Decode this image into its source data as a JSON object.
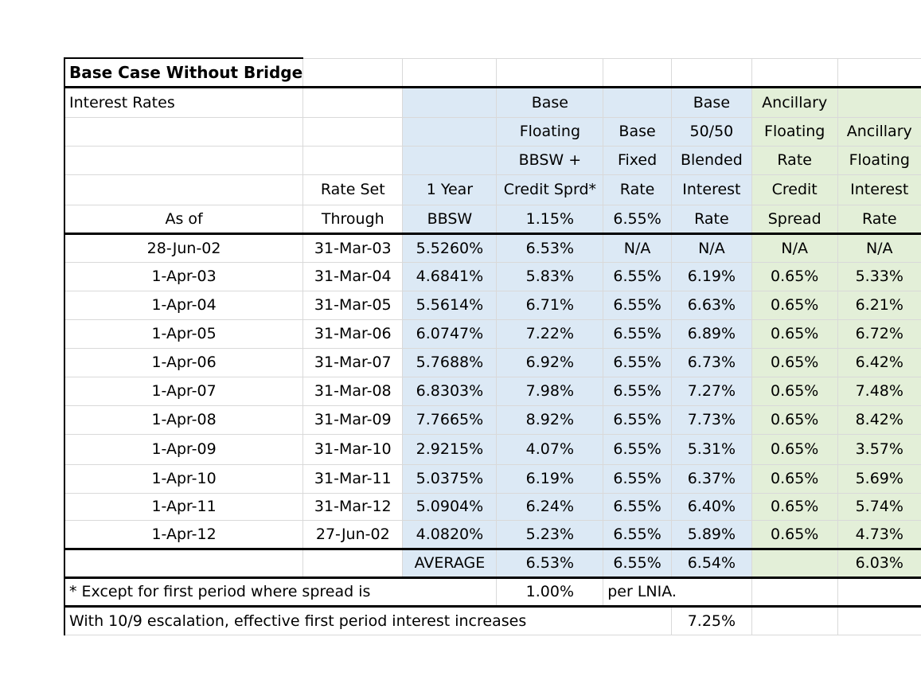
{
  "title": "Base Case Without Bridge",
  "section_label": "Interest Rates",
  "headers": {
    "as_of": "As of",
    "rate_set_1": "Rate Set",
    "rate_set_2": "Through",
    "bbsw_1": "1 Year",
    "bbsw_2": "BBSW",
    "floating_1": "Base",
    "floating_2": "Floating",
    "floating_3": "BBSW +",
    "floating_4": "Credit Sprd*",
    "floating_5": "1.15%",
    "fixed_1": "Base",
    "fixed_2": "Fixed",
    "fixed_3": "Rate",
    "fixed_4": "6.55%",
    "blended_1": "Base",
    "blended_2": "50/50",
    "blended_3": "Blended",
    "blended_4": "Interest",
    "blended_5": "Rate",
    "anc_spread_1": "Ancillary",
    "anc_spread_2": "Floating",
    "anc_spread_3": "Rate",
    "anc_spread_4": "Credit",
    "anc_spread_5": "Spread",
    "anc_rate_1": "Ancillary",
    "anc_rate_2": "Floating",
    "anc_rate_3": "Interest",
    "anc_rate_4": "Rate"
  },
  "rows": [
    {
      "as_of": "28-Jun-02",
      "through": "31-Mar-03",
      "bbsw": "5.5260%",
      "floating": "6.53%",
      "fixed": "N/A",
      "blended": "N/A",
      "anc_spread": "N/A",
      "anc_rate": "N/A"
    },
    {
      "as_of": "1-Apr-03",
      "through": "31-Mar-04",
      "bbsw": "4.6841%",
      "floating": "5.83%",
      "fixed": "6.55%",
      "blended": "6.19%",
      "anc_spread": "0.65%",
      "anc_rate": "5.33%"
    },
    {
      "as_of": "1-Apr-04",
      "through": "31-Mar-05",
      "bbsw": "5.5614%",
      "floating": "6.71%",
      "fixed": "6.55%",
      "blended": "6.63%",
      "anc_spread": "0.65%",
      "anc_rate": "6.21%"
    },
    {
      "as_of": "1-Apr-05",
      "through": "31-Mar-06",
      "bbsw": "6.0747%",
      "floating": "7.22%",
      "fixed": "6.55%",
      "blended": "6.89%",
      "anc_spread": "0.65%",
      "anc_rate": "6.72%"
    },
    {
      "as_of": "1-Apr-06",
      "through": "31-Mar-07",
      "bbsw": "5.7688%",
      "floating": "6.92%",
      "fixed": "6.55%",
      "blended": "6.73%",
      "anc_spread": "0.65%",
      "anc_rate": "6.42%"
    },
    {
      "as_of": "1-Apr-07",
      "through": "31-Mar-08",
      "bbsw": "6.8303%",
      "floating": "7.98%",
      "fixed": "6.55%",
      "blended": "7.27%",
      "anc_spread": "0.65%",
      "anc_rate": "7.48%"
    },
    {
      "as_of": "1-Apr-08",
      "through": "31-Mar-09",
      "bbsw": "7.7665%",
      "floating": "8.92%",
      "fixed": "6.55%",
      "blended": "7.73%",
      "anc_spread": "0.65%",
      "anc_rate": "8.42%"
    },
    {
      "as_of": "1-Apr-09",
      "through": "31-Mar-10",
      "bbsw": "2.9215%",
      "floating": "4.07%",
      "fixed": "6.55%",
      "blended": "5.31%",
      "anc_spread": "0.65%",
      "anc_rate": "3.57%"
    },
    {
      "as_of": "1-Apr-10",
      "through": "31-Mar-11",
      "bbsw": "5.0375%",
      "floating": "6.19%",
      "fixed": "6.55%",
      "blended": "6.37%",
      "anc_spread": "0.65%",
      "anc_rate": "5.69%"
    },
    {
      "as_of": "1-Apr-11",
      "through": "31-Mar-12",
      "bbsw": "5.0904%",
      "floating": "6.24%",
      "fixed": "6.55%",
      "blended": "6.40%",
      "anc_spread": "0.65%",
      "anc_rate": "5.74%"
    },
    {
      "as_of": "1-Apr-12",
      "through": "27-Jun-02",
      "bbsw": "4.0820%",
      "floating": "5.23%",
      "fixed": "6.55%",
      "blended": "5.89%",
      "anc_spread": "0.65%",
      "anc_rate": "4.73%"
    }
  ],
  "average": {
    "label": "AVERAGE",
    "floating": "6.53%",
    "fixed": "6.55%",
    "blended": "6.54%",
    "anc_rate": "6.03%"
  },
  "footnote": {
    "text": "* Except for first period where spread is",
    "value": "1.00%",
    "suffix": "per LNIA."
  },
  "escalation": {
    "text": "With 10/9 escalation, effective first period interest increases",
    "value": "7.25%"
  },
  "colors": {
    "blue_fill": "#dce9f5",
    "green_fill": "#e3efd8"
  }
}
